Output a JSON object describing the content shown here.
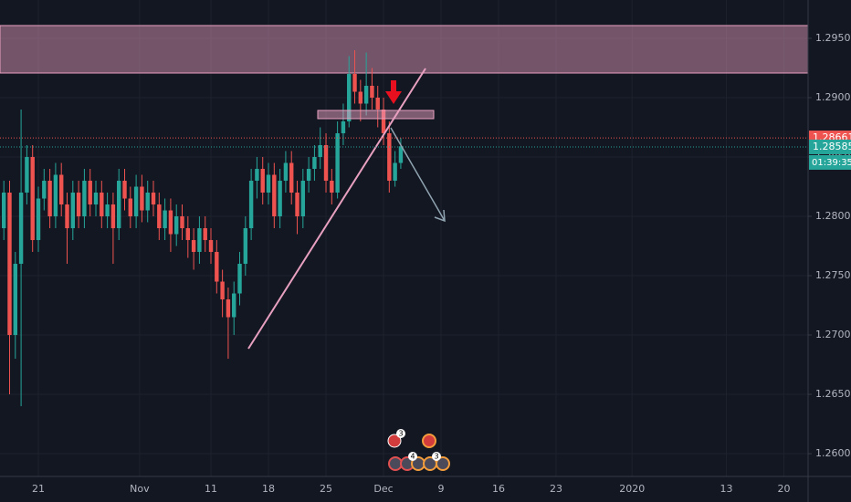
{
  "chart_data": {
    "type": "candlestick",
    "x": [
      -3.5,
      -3,
      -2.5,
      -2,
      -1.5,
      -1,
      -0.5,
      0,
      0.5,
      1,
      1.5,
      2,
      2.5,
      3,
      3.5,
      4,
      4.5,
      5,
      5.5,
      6,
      6.5,
      7,
      7.5,
      8,
      8.5,
      9,
      9.5,
      10,
      10.5,
      11,
      11.5,
      12,
      12.5,
      13,
      13.5,
      14,
      14.5,
      15,
      15.5,
      16,
      16.5,
      17,
      17.5,
      18,
      18.5,
      19,
      19.5,
      20,
      20.5,
      21,
      21.5,
      22,
      22.5,
      23,
      23.5,
      24,
      24.5,
      25,
      25.5,
      26,
      26.5,
      27,
      27.5,
      28,
      28.5,
      29,
      29.5,
      30,
      30.5,
      31,
      31.5
    ],
    "open": [
      1.28,
      1.279,
      1.282,
      1.27,
      1.276,
      1.282,
      1.285,
      1.278,
      1.2815,
      1.283,
      1.28,
      1.2835,
      1.281,
      1.279,
      1.282,
      1.28,
      1.283,
      1.281,
      1.282,
      1.28,
      1.281,
      1.279,
      1.283,
      1.2815,
      1.28,
      1.2825,
      1.2805,
      1.282,
      1.281,
      1.279,
      1.2805,
      1.2785,
      1.28,
      1.279,
      1.278,
      1.277,
      1.279,
      1.278,
      1.277,
      1.2745,
      1.273,
      1.2715,
      1.2735,
      1.276,
      1.279,
      1.283,
      1.284,
      1.282,
      1.2835,
      1.28,
      1.283,
      1.2845,
      1.282,
      1.28,
      1.283,
      1.284,
      1.285,
      1.286,
      1.283,
      1.282,
      1.287,
      1.288,
      1.292,
      1.2905,
      1.2895,
      1.291,
      1.29,
      1.289,
      1.287,
      1.283,
      1.2845
    ],
    "high": [
      1.281,
      1.283,
      1.283,
      1.277,
      1.289,
      1.286,
      1.286,
      1.2825,
      1.284,
      1.284,
      1.2845,
      1.2845,
      1.282,
      1.283,
      1.283,
      1.284,
      1.284,
      1.283,
      1.283,
      1.282,
      1.282,
      1.284,
      1.284,
      1.2825,
      1.2835,
      1.2835,
      1.283,
      1.283,
      1.282,
      1.2815,
      1.2815,
      1.281,
      1.281,
      1.28,
      1.279,
      1.28,
      1.28,
      1.279,
      1.278,
      1.2755,
      1.274,
      1.2745,
      1.277,
      1.28,
      1.284,
      1.285,
      1.285,
      1.2845,
      1.2845,
      1.284,
      1.2855,
      1.2855,
      1.283,
      1.284,
      1.285,
      1.286,
      1.2875,
      1.287,
      1.284,
      1.288,
      1.2895,
      1.2935,
      1.294,
      1.2915,
      1.2938,
      1.2925,
      1.291,
      1.29,
      1.288,
      1.2855,
      1.2866
    ],
    "low": [
      1.278,
      1.278,
      1.265,
      1.268,
      1.264,
      1.281,
      1.277,
      1.277,
      1.2805,
      1.279,
      1.279,
      1.28,
      1.276,
      1.278,
      1.279,
      1.279,
      1.28,
      1.28,
      1.279,
      1.279,
      1.276,
      1.278,
      1.2805,
      1.279,
      1.279,
      1.2795,
      1.2795,
      1.28,
      1.278,
      1.278,
      1.277,
      1.2775,
      1.278,
      1.2765,
      1.2755,
      1.276,
      1.277,
      1.276,
      1.2735,
      1.2715,
      1.268,
      1.27,
      1.2725,
      1.275,
      1.278,
      1.2815,
      1.281,
      1.281,
      1.279,
      1.279,
      1.282,
      1.281,
      1.2785,
      1.279,
      1.282,
      1.283,
      1.284,
      1.282,
      1.281,
      1.2815,
      1.286,
      1.2875,
      1.2895,
      1.288,
      1.2885,
      1.289,
      1.2875,
      1.286,
      1.282,
      1.2825,
      1.284
    ],
    "close": [
      1.279,
      1.282,
      1.27,
      1.276,
      1.282,
      1.285,
      1.278,
      1.2815,
      1.283,
      1.28,
      1.2835,
      1.281,
      1.279,
      1.282,
      1.28,
      1.283,
      1.281,
      1.282,
      1.28,
      1.281,
      1.279,
      1.283,
      1.2815,
      1.28,
      1.2825,
      1.2805,
      1.282,
      1.281,
      1.279,
      1.2805,
      1.2785,
      1.28,
      1.279,
      1.278,
      1.277,
      1.279,
      1.278,
      1.277,
      1.2745,
      1.273,
      1.2715,
      1.2735,
      1.276,
      1.279,
      1.283,
      1.284,
      1.282,
      1.2835,
      1.28,
      1.283,
      1.2845,
      1.282,
      1.28,
      1.283,
      1.284,
      1.285,
      1.286,
      1.283,
      1.282,
      1.287,
      1.288,
      1.292,
      1.2905,
      1.2895,
      1.291,
      1.29,
      1.289,
      1.287,
      1.283,
      1.2845,
      1.2859
    ],
    "up_color": "#26a69a",
    "down_color": "#ef5350",
    "xlim": [
      -3.333,
      66.9
    ],
    "xticks": [
      {
        "value": 0,
        "label": "21"
      },
      {
        "value": 8.8,
        "label": "Nov"
      },
      {
        "value": 15,
        "label": "11"
      },
      {
        "value": 20,
        "label": "18"
      },
      {
        "value": 25,
        "label": "25"
      },
      {
        "value": 30,
        "label": "Dec"
      },
      {
        "value": 35,
        "label": "9"
      },
      {
        "value": 40,
        "label": "16"
      },
      {
        "value": 45,
        "label": "23"
      },
      {
        "value": 51.6,
        "label": "2020"
      },
      {
        "value": 59.8,
        "label": "13"
      },
      {
        "value": 64.8,
        "label": "20"
      }
    ],
    "ylim": [
      1.25808,
      1.29823
    ],
    "yticks": [
      {
        "value": 1.26,
        "label": "1.26000"
      },
      {
        "value": 1.265,
        "label": "1.26500"
      },
      {
        "value": 1.27,
        "label": "1.27000"
      },
      {
        "value": 1.275,
        "label": "1.27500"
      },
      {
        "value": 1.28,
        "label": "1.28000"
      },
      {
        "value": 1.285,
        "label": "1.28500"
      },
      {
        "value": 1.29,
        "label": "1.29000"
      },
      {
        "value": 1.295,
        "label": "1.29500"
      }
    ],
    "grid": true,
    "price_lines": [
      {
        "value": 1.28661,
        "color": "#ef5350"
      },
      {
        "value": 1.28585,
        "color": "#26a69a"
      }
    ],
    "countdown": "01:39:35",
    "event_counts": [
      3,
      4,
      3
    ]
  }
}
